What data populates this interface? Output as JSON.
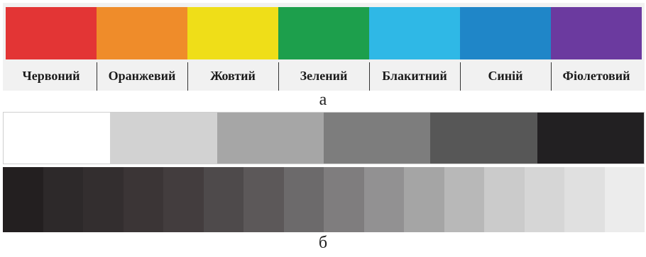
{
  "figure_a": {
    "caption": "а",
    "swatches": [
      {
        "label": "Червоний",
        "color": "#e33535"
      },
      {
        "label": "Оранжевий",
        "color": "#ef8c2a"
      },
      {
        "label": "Жовтий",
        "color": "#efde18"
      },
      {
        "label": "Зелений",
        "color": "#1d9f4c"
      },
      {
        "label": "Блакитний",
        "color": "#2fb8e6"
      },
      {
        "label": "Синій",
        "color": "#1f86c8"
      },
      {
        "label": "Фіолетовий",
        "color": "#6b3a9f"
      }
    ]
  },
  "figure_b": {
    "caption": "б",
    "gray_steps": [
      "#ffffff",
      "#d2d2d2",
      "#a6a6a6",
      "#7d7d7d",
      "#575757",
      "#222022"
    ],
    "gray_gradient": [
      "#231f20",
      "#2d292a",
      "#332e2f",
      "#3b3536",
      "#433d3e",
      "#4e4a4b",
      "#5c5859",
      "#6c6a6b",
      "#7f7d7e",
      "#929192",
      "#a5a5a5",
      "#b8b8b8",
      "#cbcbcb",
      "#d6d6d6",
      "#e0e0e0",
      "#ececec"
    ]
  }
}
